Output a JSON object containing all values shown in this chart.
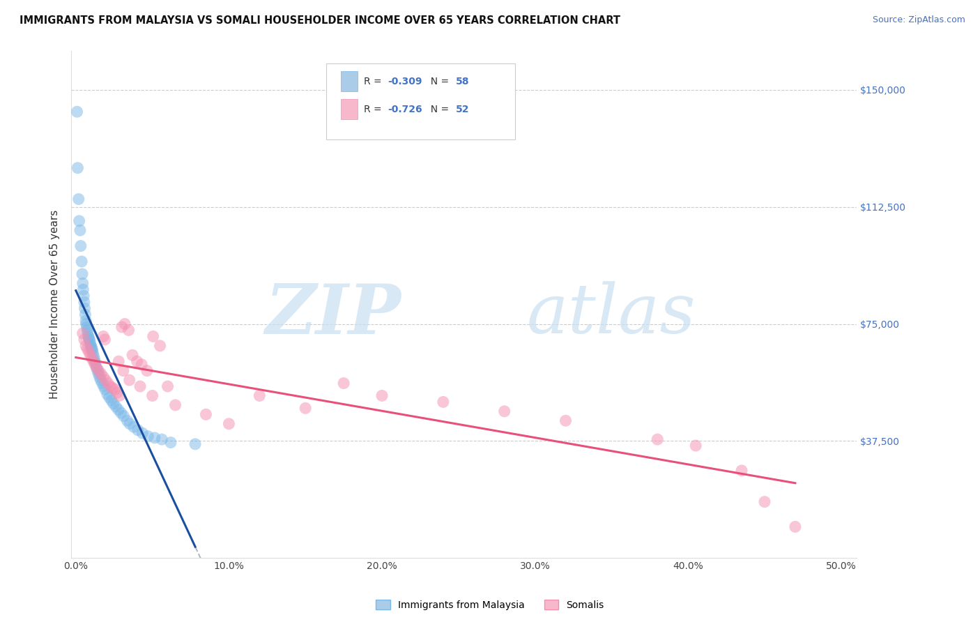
{
  "title": "IMMIGRANTS FROM MALAYSIA VS SOMALI HOUSEHOLDER INCOME OVER 65 YEARS CORRELATION CHART",
  "source": "Source: ZipAtlas.com",
  "xlabel_vals": [
    0.0,
    10.0,
    20.0,
    30.0,
    40.0,
    50.0
  ],
  "ylabel_ticks": [
    "$37,500",
    "$75,000",
    "$112,500",
    "$150,000"
  ],
  "ylabel_vals": [
    37500,
    75000,
    112500,
    150000
  ],
  "ylabel_label": "Householder Income Over 65 years",
  "ylim": [
    0,
    162500
  ],
  "xlim": [
    -0.3,
    51
  ],
  "series1_name": "Immigrants from Malaysia",
  "series2_name": "Somalis",
  "series1_color": "#7ab8e8",
  "series2_color": "#f48fb0",
  "series1_r": -0.309,
  "series1_n": 58,
  "series2_r": -0.726,
  "series2_n": 52,
  "malaysia_x": [
    0.08,
    0.12,
    0.18,
    0.22,
    0.28,
    0.32,
    0.38,
    0.42,
    0.45,
    0.48,
    0.52,
    0.55,
    0.58,
    0.62,
    0.65,
    0.68,
    0.72,
    0.75,
    0.78,
    0.82,
    0.85,
    0.88,
    0.92,
    0.95,
    0.98,
    1.02,
    1.05,
    1.08,
    1.12,
    1.18,
    1.22,
    1.28,
    1.35,
    1.42,
    1.48,
    1.55,
    1.62,
    1.72,
    1.82,
    1.92,
    2.05,
    2.18,
    2.32,
    2.45,
    2.62,
    2.78,
    2.95,
    3.12,
    3.35,
    3.52,
    3.78,
    4.05,
    4.35,
    4.72,
    5.15,
    5.62,
    6.2,
    7.8
  ],
  "malaysia_y": [
    143000,
    125000,
    115000,
    108000,
    105000,
    100000,
    95000,
    91000,
    88000,
    86000,
    84000,
    82000,
    80000,
    78000,
    76000,
    75000,
    74000,
    73000,
    72000,
    71000,
    70500,
    70000,
    69500,
    68500,
    68000,
    67500,
    67000,
    66500,
    65500,
    64500,
    63500,
    62500,
    61000,
    60000,
    59000,
    58000,
    57000,
    56000,
    55000,
    54000,
    52500,
    51500,
    50500,
    49500,
    48500,
    47500,
    46500,
    45500,
    44000,
    43000,
    42000,
    41000,
    40000,
    39000,
    38500,
    38000,
    37000,
    36500
  ],
  "somali_x": [
    0.45,
    0.55,
    0.65,
    0.75,
    0.85,
    0.95,
    1.05,
    1.15,
    1.25,
    1.35,
    1.5,
    1.65,
    1.8,
    1.95,
    2.1,
    2.25,
    2.4,
    2.55,
    2.7,
    2.85,
    3.0,
    3.2,
    3.45,
    3.7,
    4.0,
    4.3,
    4.65,
    5.05,
    5.5,
    6.0,
    3.8,
    6.8,
    7.5,
    8.2,
    9.0,
    10.5,
    12.0,
    14.0,
    16.5,
    19.0,
    21.0,
    23.5,
    25.0,
    27.5,
    30.0,
    33.0,
    36.0,
    39.0,
    40.5,
    43.0,
    45.5,
    47.0
  ],
  "somali_y": [
    72000,
    70000,
    68000,
    67000,
    66000,
    65000,
    64000,
    63000,
    62000,
    61000,
    60000,
    59000,
    58000,
    57000,
    56000,
    55000,
    54500,
    54000,
    53000,
    52000,
    51000,
    50000,
    49000,
    48000,
    74000,
    75000,
    73000,
    71000,
    70000,
    55000,
    47000,
    65000,
    64000,
    62000,
    61000,
    55000,
    50000,
    48000,
    46000,
    44000,
    42000,
    40000,
    52000,
    50000,
    48000,
    46000,
    44000,
    42000,
    40500,
    22000,
    18000,
    13000
  ]
}
